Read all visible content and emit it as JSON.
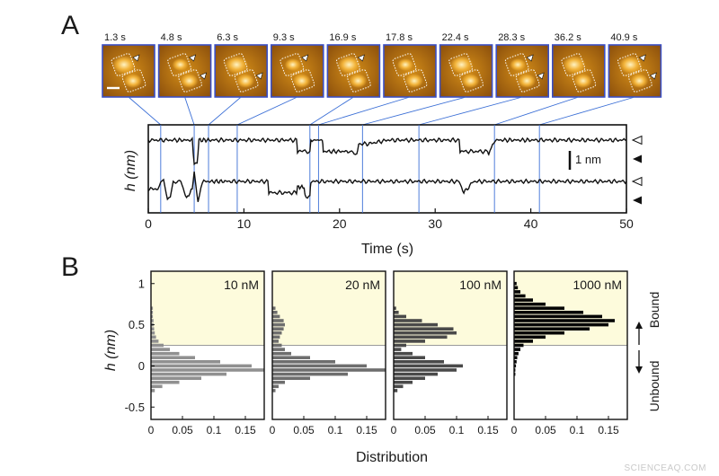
{
  "panel_a_letter": "A",
  "panel_b_letter": "B",
  "watermark": "SCIENCEAQ.COM",
  "afm_frames": [
    "1.3 s",
    "4.8 s",
    "6.3 s",
    "9.3 s",
    "16.9 s",
    "17.8 s",
    "22.4 s",
    "28.3 s",
    "36.2 s",
    "40.9 s"
  ],
  "afm_frame_times": [
    1.3,
    4.8,
    6.3,
    9.3,
    16.9,
    17.8,
    22.4,
    28.3,
    36.2,
    40.9
  ],
  "colors": {
    "frame_border": "#3b4fc4",
    "guide_line": "#3b6fd6",
    "bound_fill": "#fdfbdc",
    "hist_10": "#909090",
    "hist_20": "#6e6e6e",
    "hist_100": "#4a4a4a",
    "hist_1000": "#050505"
  },
  "chart_data": [
    {
      "type": "line",
      "xlabel": "Time (s)",
      "ylabel": "h (nm)",
      "xlim": [
        0,
        50
      ],
      "xticks": [
        0,
        10,
        20,
        30,
        40,
        50
      ],
      "scale_bar_label": "1 nm",
      "series": [
        {
          "t": [
            0,
            1,
            3,
            4.6,
            4.8,
            5.1,
            5.3,
            6.5,
            9,
            12,
            15.5,
            15.6,
            16.9,
            17,
            17.5,
            18.2,
            18.3,
            21,
            21.8,
            22,
            23,
            25,
            29,
            32.5,
            32.6,
            35.5,
            35.6,
            36,
            36.3,
            40,
            44,
            48,
            50
          ],
          "h": [
            0,
            0,
            0,
            0,
            -1.3,
            -1.3,
            0,
            0,
            0,
            0,
            0,
            -0.6,
            -0.6,
            0,
            0,
            0,
            -0.6,
            -0.6,
            -0.8,
            -0.2,
            -0.2,
            0,
            0,
            0,
            -0.6,
            -0.6,
            -0.8,
            -0.2,
            0,
            0,
            0,
            0,
            0
          ]
        },
        {
          "t": [
            0,
            1,
            1.3,
            1.6,
            2,
            2.3,
            2.6,
            3.4,
            4,
            4.6,
            4.8,
            5.2,
            5.5,
            5.8,
            6.3,
            8,
            12.5,
            12.6,
            15.5,
            15.6,
            16.3,
            16.4,
            16.9,
            17,
            17.5,
            20,
            27,
            28,
            32.5,
            33,
            34,
            42,
            50
          ],
          "h": [
            -0.4,
            -0.4,
            0,
            0,
            -0.9,
            -0.9,
            0,
            0,
            -0.9,
            -0.4,
            0.5,
            -1.0,
            -0.4,
            0,
            0,
            0,
            0,
            -0.6,
            -0.6,
            -0.3,
            -0.3,
            -0.8,
            -0.8,
            0,
            0,
            0,
            0,
            0,
            0,
            -0.6,
            0,
            0,
            0
          ]
        }
      ]
    },
    {
      "type": "bar",
      "orientation": "horizontal",
      "xlabel": "Distribution",
      "ylabel": "h (nm)",
      "ylim": [
        -0.65,
        1.15
      ],
      "yticks": [
        -0.5,
        0,
        0.5,
        1
      ],
      "xlim": [
        0,
        0.18
      ],
      "xticks": [
        0,
        0.05,
        0.1,
        0.15
      ],
      "threshold": 0.25,
      "upper_label": "Bound",
      "lower_label": "Unbound",
      "panels": [
        {
          "label": "10 nM",
          "h": [
            0.7,
            0.65,
            0.6,
            0.55,
            0.5,
            0.45,
            0.4,
            0.35,
            0.3,
            0.25,
            0.2,
            0.15,
            0.1,
            0.05,
            0,
            -0.05,
            -0.1,
            -0.15,
            -0.2,
            -0.25,
            -0.3
          ],
          "values": [
            0.003,
            0.003,
            0.003,
            0.004,
            0.004,
            0.005,
            0.006,
            0.008,
            0.012,
            0.02,
            0.03,
            0.045,
            0.07,
            0.11,
            0.16,
            0.18,
            0.12,
            0.08,
            0.045,
            0.018,
            0.006
          ]
        },
        {
          "label": "20 nM",
          "h": [
            0.7,
            0.65,
            0.6,
            0.55,
            0.5,
            0.45,
            0.4,
            0.35,
            0.3,
            0.25,
            0.2,
            0.15,
            0.1,
            0.05,
            0,
            -0.05,
            -0.1,
            -0.15,
            -0.2,
            -0.25,
            -0.3
          ],
          "values": [
            0.005,
            0.008,
            0.012,
            0.018,
            0.02,
            0.018,
            0.015,
            0.012,
            0.01,
            0.015,
            0.02,
            0.03,
            0.06,
            0.1,
            0.15,
            0.18,
            0.12,
            0.06,
            0.02,
            0.01,
            0.005
          ]
        },
        {
          "label": "100 nM",
          "h": [
            0.7,
            0.65,
            0.6,
            0.55,
            0.5,
            0.45,
            0.4,
            0.35,
            0.3,
            0.25,
            0.2,
            0.15,
            0.1,
            0.05,
            0,
            -0.05,
            -0.1,
            -0.15,
            -0.2,
            -0.25,
            -0.3
          ],
          "values": [
            0.004,
            0.008,
            0.02,
            0.045,
            0.07,
            0.095,
            0.1,
            0.085,
            0.05,
            0.02,
            0.012,
            0.03,
            0.05,
            0.08,
            0.11,
            0.1,
            0.07,
            0.05,
            0.03,
            0.015,
            0.006
          ]
        },
        {
          "label": "1000 nM",
          "h": [
            1.0,
            0.95,
            0.9,
            0.85,
            0.8,
            0.75,
            0.7,
            0.65,
            0.6,
            0.55,
            0.5,
            0.45,
            0.4,
            0.35,
            0.3,
            0.25,
            0.2,
            0.15,
            0.1,
            0.05,
            0,
            -0.05,
            -0.1
          ],
          "values": [
            0.004,
            0.006,
            0.01,
            0.018,
            0.03,
            0.05,
            0.08,
            0.11,
            0.14,
            0.16,
            0.15,
            0.12,
            0.08,
            0.05,
            0.03,
            0.015,
            0.01,
            0.007,
            0.005,
            0.004,
            0.003,
            0.002,
            0.002
          ]
        }
      ]
    }
  ]
}
